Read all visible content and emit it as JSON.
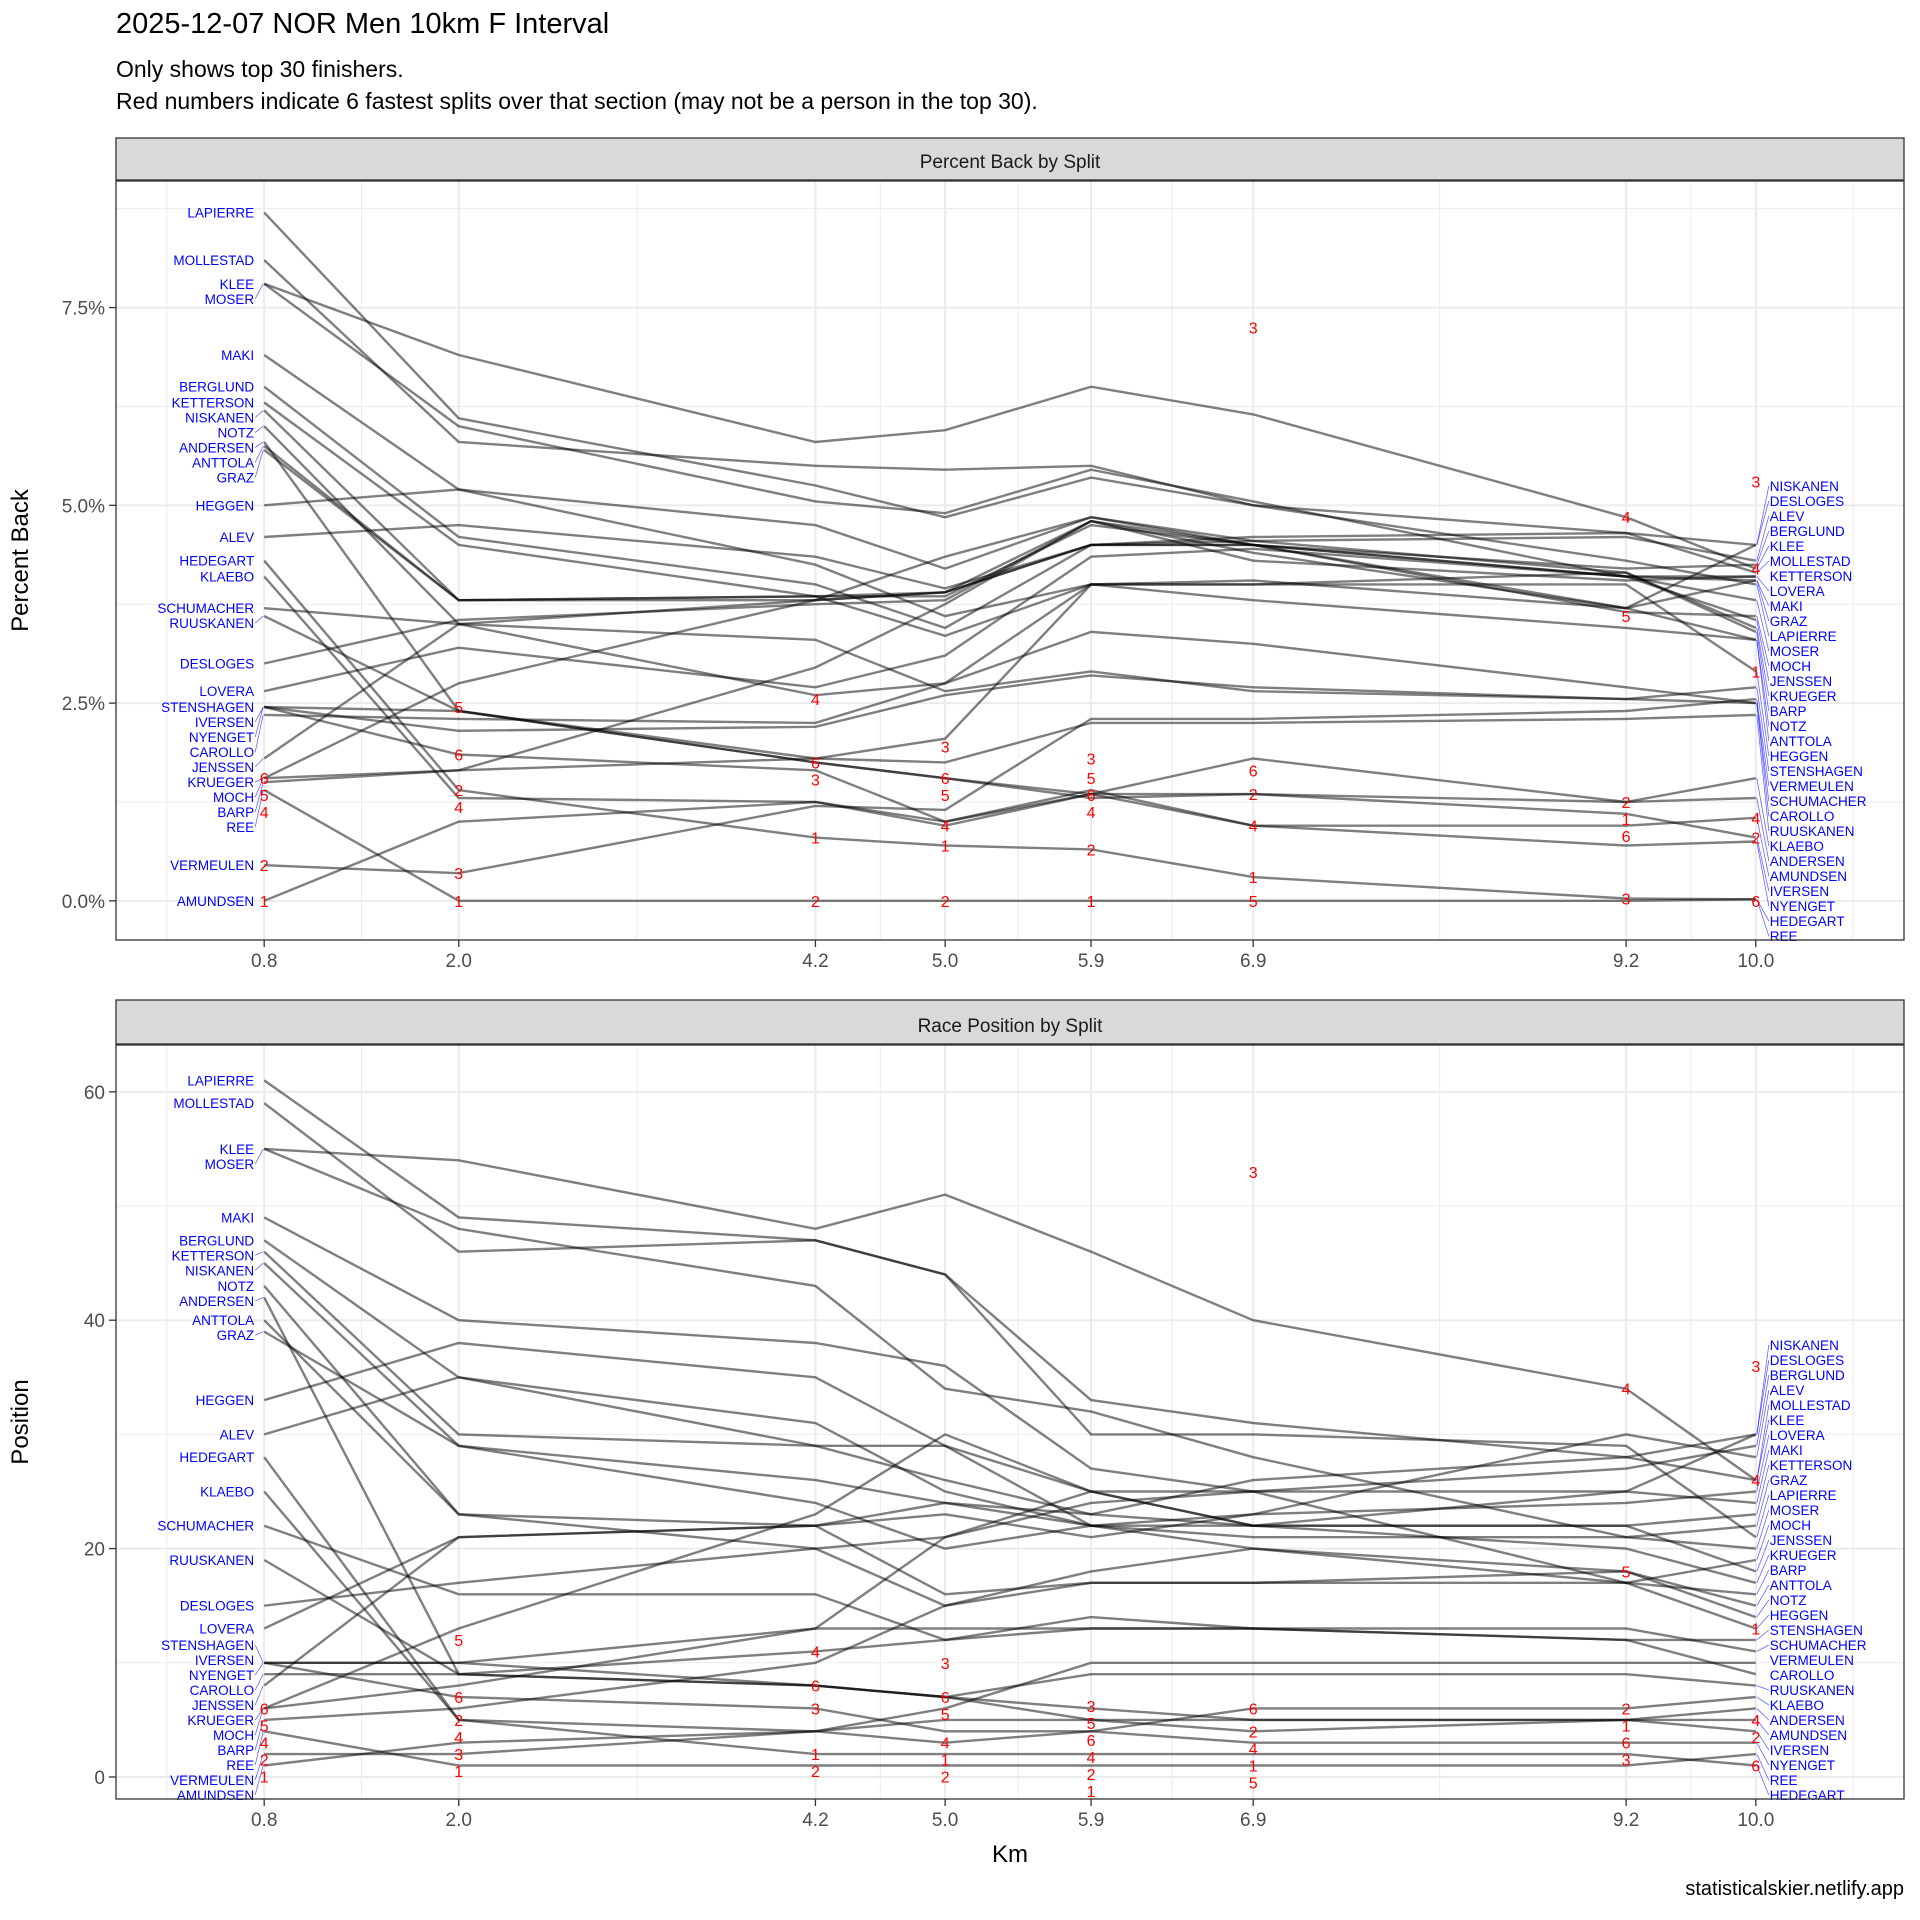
{
  "title": "2025-12-07 NOR Men 10km F Interval",
  "subtitle_lines": [
    "Only shows top 30 finishers.",
    "Red numbers indicate 6 fastest splits over that section (may not be a person in the top 30)."
  ],
  "credit": "statisticalskier.netlify.app",
  "colors": {
    "line": "#000000",
    "name_label": "#0000FF",
    "rank_label": "#FF0000",
    "strip": "#D9D9D9",
    "grid": "#EBEBEB"
  },
  "chart_data": [
    {
      "type": "line",
      "title": "Percent Back by Split",
      "xlabel": "",
      "ylabel": "Percent Back",
      "x_ticks": [
        0.8,
        2.0,
        4.2,
        5.0,
        5.9,
        6.9,
        9.2,
        10.0
      ],
      "x_tick_labels": [
        "0.8",
        "2.0",
        "4.2",
        "5.0",
        "5.9",
        "6.9",
        "9.2",
        "10.0"
      ],
      "xlim": [
        -0.114,
        10.914
      ],
      "ylim": [
        -0.495,
        9.1
      ],
      "y_ticks": [
        0,
        2.5,
        5,
        7.5
      ],
      "y_tick_labels": [
        "0.0%",
        "2.5%",
        "5.0%",
        "7.5%"
      ],
      "grid": true,
      "rank_labels": [
        [
          0.8,
          1.55,
          "6"
        ],
        [
          0.8,
          1.5,
          "5"
        ],
        [
          0.8,
          1.4,
          "4"
        ],
        [
          0.8,
          0.45,
          "2"
        ],
        [
          0.8,
          0,
          "1"
        ],
        [
          2.0,
          2.45,
          "5"
        ],
        [
          2.0,
          1.85,
          "6"
        ],
        [
          2.0,
          1.4,
          "2"
        ],
        [
          2.0,
          1.25,
          "4"
        ],
        [
          2.0,
          0.35,
          "3"
        ],
        [
          2.0,
          0,
          "1"
        ],
        [
          4.2,
          2.55,
          "4"
        ],
        [
          4.2,
          1.75,
          "6"
        ],
        [
          4.2,
          1.55,
          "3"
        ],
        [
          4.2,
          0.8,
          "1"
        ],
        [
          4.2,
          0,
          "2"
        ],
        [
          5.0,
          1.95,
          "3"
        ],
        [
          5.0,
          1.55,
          "6"
        ],
        [
          5.0,
          1.4,
          "5"
        ],
        [
          5.0,
          0.95,
          "4"
        ],
        [
          5.0,
          0.7,
          "1"
        ],
        [
          5.0,
          0,
          "2"
        ],
        [
          5.9,
          1.8,
          "3"
        ],
        [
          5.9,
          1.55,
          "5"
        ],
        [
          5.9,
          1.35,
          "6"
        ],
        [
          5.9,
          1.25,
          "4"
        ],
        [
          5.9,
          0.65,
          "2"
        ],
        [
          5.9,
          0,
          "1"
        ],
        [
          6.9,
          7.25,
          "3"
        ],
        [
          6.9,
          1.65,
          "6"
        ],
        [
          6.9,
          1.35,
          "2"
        ],
        [
          6.9,
          0.95,
          "4"
        ],
        [
          6.9,
          0.3,
          "1"
        ],
        [
          6.9,
          0,
          "5"
        ],
        [
          9.2,
          4.85,
          "4"
        ],
        [
          9.2,
          3.6,
          "5"
        ],
        [
          9.2,
          1.25,
          "2"
        ],
        [
          9.2,
          1.05,
          "1"
        ],
        [
          9.2,
          0.95,
          "6"
        ],
        [
          9.2,
          0.03,
          "3"
        ],
        [
          10.0,
          5.3,
          "3"
        ],
        [
          10.0,
          4.2,
          "4"
        ],
        [
          10.0,
          2.9,
          "1"
        ],
        [
          10.0,
          1.05,
          "4"
        ],
        [
          10.0,
          0.8,
          "2"
        ],
        [
          10.0,
          0,
          "6"
        ]
      ]
    },
    {
      "type": "line",
      "title": "Race Position by Split",
      "xlabel": "Km",
      "ylabel": "Position",
      "x_ticks": [
        0.8,
        2.0,
        4.2,
        5.0,
        5.9,
        6.9,
        9.2,
        10.0
      ],
      "x_tick_labels": [
        "0.8",
        "2.0",
        "4.2",
        "5.0",
        "5.9",
        "6.9",
        "9.2",
        "10.0"
      ],
      "xlim": [
        -0.114,
        10.914
      ],
      "ylim": [
        -1.93,
        64.1
      ],
      "y_ticks": [
        0,
        20,
        40,
        60
      ],
      "y_tick_labels": [
        "0",
        "20",
        "40",
        "60"
      ],
      "grid": true,
      "rank_labels": [
        [
          0.8,
          6,
          "6"
        ],
        [
          0.8,
          5,
          "5"
        ],
        [
          0.8,
          4,
          "4"
        ],
        [
          0.8,
          2,
          "2"
        ],
        [
          0.8,
          1,
          "1"
        ],
        [
          2.0,
          12,
          "5"
        ],
        [
          2.0,
          7,
          "6"
        ],
        [
          2.0,
          5,
          "2"
        ],
        [
          2.0,
          4,
          "4"
        ],
        [
          2.0,
          2,
          "3"
        ],
        [
          2.0,
          1,
          "1"
        ],
        [
          4.2,
          11,
          "4"
        ],
        [
          4.2,
          8,
          "6"
        ],
        [
          4.2,
          6,
          "3"
        ],
        [
          4.2,
          2,
          "1"
        ],
        [
          4.2,
          1,
          "2"
        ],
        [
          5.0,
          10,
          "3"
        ],
        [
          5.0,
          7,
          "6"
        ],
        [
          5.0,
          6,
          "5"
        ],
        [
          5.0,
          3,
          "4"
        ],
        [
          5.0,
          2,
          "1"
        ],
        [
          5.0,
          1,
          "2"
        ],
        [
          5.9,
          6,
          "3"
        ],
        [
          5.9,
          5,
          "5"
        ],
        [
          5.9,
          4,
          "6"
        ],
        [
          5.9,
          3,
          "4"
        ],
        [
          5.9,
          2,
          "2"
        ],
        [
          5.9,
          1,
          "1"
        ],
        [
          6.9,
          53,
          "3"
        ],
        [
          6.9,
          6,
          "6"
        ],
        [
          6.9,
          4,
          "2"
        ],
        [
          6.9,
          3,
          "4"
        ],
        [
          6.9,
          2,
          "1"
        ],
        [
          6.9,
          1,
          "5"
        ],
        [
          9.2,
          34,
          "4"
        ],
        [
          9.2,
          18,
          "5"
        ],
        [
          9.2,
          6,
          "2"
        ],
        [
          9.2,
          5,
          "1"
        ],
        [
          9.2,
          4,
          "6"
        ],
        [
          9.2,
          2,
          "3"
        ],
        [
          10.0,
          36,
          "3"
        ],
        [
          10.0,
          26,
          "4"
        ],
        [
          10.0,
          13,
          "1"
        ],
        [
          10.0,
          5,
          "4"
        ],
        [
          10.0,
          4,
          "2"
        ],
        [
          10.0,
          1,
          "6"
        ]
      ]
    }
  ],
  "athletes": [
    {
      "name": "LAPIERRE",
      "pct": [
        8.7,
        6.1,
        5.25,
        4.85,
        5.35,
        5.0,
        4.3,
        4.0
      ],
      "pos": [
        61,
        49,
        47,
        44,
        30,
        30,
        29,
        21
      ]
    },
    {
      "name": "MOLLESTAD",
      "pct": [
        8.1,
        5.8,
        5.5,
        5.45,
        5.5,
        5.0,
        4.65,
        4.15
      ],
      "pos": [
        59,
        46,
        47,
        44,
        33,
        31,
        28,
        26
      ]
    },
    {
      "name": "KLEE",
      "pct": [
        7.8,
        6.9,
        5.8,
        5.95,
        6.5,
        6.15,
        4.85,
        4.2
      ],
      "pos": [
        55,
        54,
        48,
        51,
        46,
        40,
        34,
        26
      ]
    },
    {
      "name": "MOSER",
      "pct": [
        7.8,
        6.0,
        5.05,
        4.9,
        5.45,
        5.05,
        4.1,
        3.8
      ],
      "pos": [
        55,
        48,
        43,
        34,
        32,
        28,
        21,
        20
      ]
    },
    {
      "name": "MAKI",
      "pct": [
        6.9,
        5.2,
        4.75,
        4.2,
        4.85,
        4.5,
        4.1,
        4.05
      ],
      "pos": [
        49,
        40,
        38,
        36,
        27,
        25,
        25,
        24
      ]
    },
    {
      "name": "BERGLUND",
      "pct": [
        6.5,
        4.6,
        4.0,
        3.45,
        4.5,
        4.5,
        4.2,
        4.25
      ],
      "pos": [
        47,
        35,
        29,
        29,
        25,
        25,
        27,
        29
      ]
    },
    {
      "name": "KETTERSON",
      "pct": [
        6.3,
        4.5,
        3.85,
        3.9,
        4.8,
        4.3,
        4.05,
        4.1
      ],
      "pos": [
        46,
        30,
        29,
        26,
        23,
        22,
        22,
        23
      ]
    },
    {
      "name": "NISKANEN",
      "pct": [
        6.2,
        3.8,
        3.8,
        3.9,
        4.5,
        4.6,
        4.65,
        4.5
      ],
      "pos": [
        45,
        29,
        26,
        24,
        23,
        26,
        28,
        30
      ]
    },
    {
      "name": "NOTZ",
      "pct": [
        6.0,
        3.5,
        2.6,
        2.75,
        4.0,
        3.8,
        3.45,
        3.3
      ],
      "pos": [
        43,
        23,
        20,
        15,
        18,
        20,
        18,
        14
      ]
    },
    {
      "name": "ANDERSEN",
      "pct": [
        5.8,
        2.4,
        1.75,
        1.55,
        1.35,
        1.35,
        1.25,
        1.3
      ],
      "pos": [
        42,
        9,
        8,
        7,
        5,
        4,
        5,
        6
      ]
    },
    {
      "name": "ANTTOLA",
      "pct": [
        5.75,
        3.8,
        3.85,
        3.35,
        4.0,
        4.05,
        3.7,
        3.3
      ],
      "pos": [
        40,
        23,
        22,
        16,
        17,
        17,
        18,
        15
      ]
    },
    {
      "name": "GRAZ",
      "pct": [
        5.7,
        3.8,
        3.85,
        3.85,
        4.75,
        4.5,
        3.7,
        4.05
      ],
      "pos": [
        39,
        29,
        24,
        20,
        22,
        21,
        21,
        22
      ]
    },
    {
      "name": "HEGGEN",
      "pct": [
        5.0,
        5.2,
        4.25,
        3.6,
        4.0,
        4.0,
        4.0,
        2.9
      ],
      "pos": [
        33,
        38,
        35,
        29,
        22,
        20,
        17,
        13
      ]
    },
    {
      "name": "ALEV",
      "pct": [
        4.6,
        4.75,
        4.35,
        3.95,
        4.5,
        4.55,
        4.6,
        4.3
      ],
      "pos": [
        30,
        35,
        31,
        25,
        22,
        23,
        30,
        28
      ]
    },
    {
      "name": "HEDEGART",
      "pct": [
        4.3,
        1.4,
        0.8,
        0.7,
        0.65,
        0.3,
        0.03,
        0.02
      ],
      "pos": [
        28,
        5,
        2,
        2,
        2,
        2,
        2,
        1
      ]
    },
    {
      "name": "KLAEBO",
      "pct": [
        4.1,
        1.3,
        1.25,
        0.95,
        1.35,
        1.8,
        1.25,
        1.55
      ],
      "pos": [
        25,
        5,
        4,
        3,
        4,
        6,
        6,
        7
      ]
    },
    {
      "name": "SCHUMACHER",
      "pct": [
        3.7,
        3.5,
        3.3,
        2.65,
        2.9,
        2.65,
        2.55,
        2.5
      ],
      "pos": [
        22,
        16,
        16,
        12,
        14,
        13,
        13,
        11
      ]
    },
    {
      "name": "RUUSKANEN",
      "pct": [
        3.6,
        2.4,
        1.8,
        1.75,
        2.25,
        2.25,
        2.3,
        2.35
      ],
      "pos": [
        19,
        9,
        8,
        7,
        9,
        9,
        9,
        8
      ]
    },
    {
      "name": "DESLOGES",
      "pct": [
        3.0,
        3.55,
        3.75,
        3.8,
        4.8,
        4.4,
        3.7,
        4.5
      ],
      "pos": [
        15,
        17,
        20,
        21,
        25,
        22,
        25,
        30
      ]
    },
    {
      "name": "LOVERA",
      "pct": [
        2.65,
        3.2,
        2.7,
        3.1,
        4.35,
        4.45,
        4.1,
        4.1
      ],
      "pos": [
        13,
        21,
        22,
        23,
        21,
        23,
        24,
        25
      ]
    },
    {
      "name": "STENSHAGEN",
      "pct": [
        2.45,
        2.15,
        2.2,
        2.6,
        2.85,
        2.7,
        2.55,
        2.7
      ],
      "pos": [
        10,
        10,
        13,
        13,
        13,
        13,
        12,
        12
      ]
    },
    {
      "name": "IVERSEN",
      "pct": [
        2.45,
        2.4,
        1.75,
        1.55,
        1.3,
        1.35,
        1.1,
        0.8
      ],
      "pos": [
        10,
        10,
        8,
        7,
        6,
        5,
        5,
        4
      ]
    },
    {
      "name": "NYENGET",
      "pct": [
        2.45,
        1.85,
        1.65,
        1.0,
        1.35,
        0.95,
        0.7,
        0.75
      ],
      "pos": [
        10,
        7,
        6,
        4,
        4,
        3,
        3,
        3
      ]
    },
    {
      "name": "CAROLLO",
      "pct": [
        2.35,
        2.3,
        2.25,
        2.75,
        3.4,
        3.25,
        2.7,
        2.5
      ],
      "pos": [
        9,
        9,
        11,
        12,
        13,
        13,
        12,
        9
      ]
    },
    {
      "name": "JENSSEN",
      "pct": [
        1.8,
        3.5,
        3.8,
        3.9,
        4.5,
        4.5,
        4.1,
        3.55
      ],
      "pos": [
        8,
        21,
        22,
        24,
        22,
        22,
        22,
        18
      ]
    },
    {
      "name": "KRUEGER",
      "pct": [
        1.55,
        2.75,
        3.8,
        4.35,
        4.85,
        4.55,
        4.15,
        3.45
      ],
      "pos": [
        6,
        13,
        23,
        30,
        25,
        22,
        20,
        17
      ]
    },
    {
      "name": "MOCH",
      "pct": [
        1.55,
        1.65,
        2.95,
        3.75,
        4.8,
        4.5,
        3.65,
        3.6
      ],
      "pos": [
        6,
        8,
        13,
        21,
        24,
        25,
        17,
        19
      ]
    },
    {
      "name": "BARP",
      "pct": [
        1.5,
        1.65,
        1.8,
        2.05,
        4.0,
        4.0,
        4.15,
        3.4
      ],
      "pos": [
        5,
        6,
        10,
        15,
        17,
        17,
        17,
        16
      ]
    },
    {
      "name": "REE",
      "pct": [
        1.4,
        0,
        0,
        0,
        0,
        0,
        0,
        0.02
      ],
      "pos": [
        4,
        1,
        1,
        1,
        1,
        1,
        1,
        2
      ]
    },
    {
      "name": "VERMEULEN",
      "pct": [
        0.45,
        0.35,
        1.2,
        1.15,
        2.3,
        2.3,
        2.4,
        2.55
      ],
      "pos": [
        2,
        2,
        4,
        6,
        10,
        10,
        10,
        10
      ]
    },
    {
      "name": "AMUNDSEN",
      "pct": [
        0,
        1.0,
        1.25,
        1.0,
        1.4,
        0.95,
        0.95,
        1.05
      ],
      "pos": [
        1,
        3,
        4,
        5,
        5,
        5,
        5,
        5
      ]
    }
  ]
}
